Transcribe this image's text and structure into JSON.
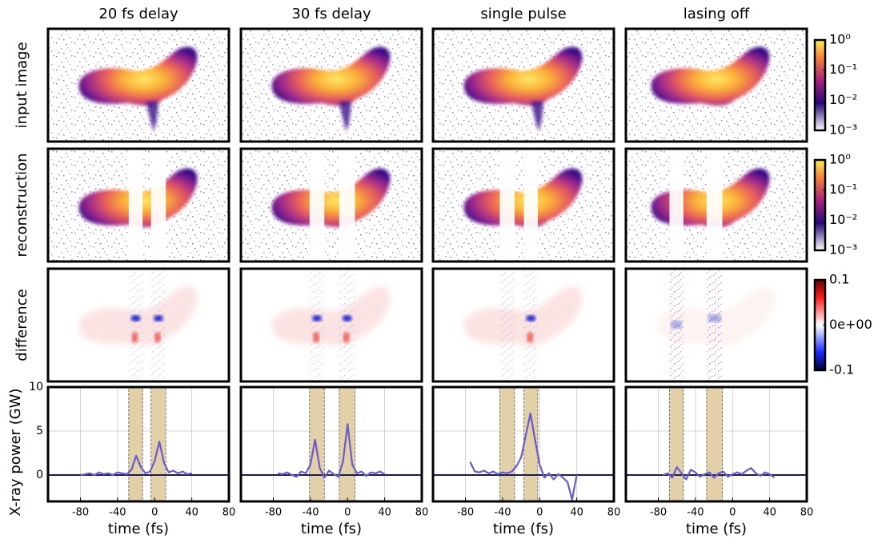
{
  "columns": [
    "20 fs delay",
    "30 fs delay",
    "single pulse",
    "lasing off"
  ],
  "image_rows": [
    "input image",
    "reconstruction",
    "difference"
  ],
  "colorbars": [
    {
      "scale": "log",
      "lim": [
        -3,
        0
      ],
      "ticks": [
        {
          "value": 0,
          "label": "10⁰"
        },
        {
          "value": -1,
          "label": "10⁻¹"
        },
        {
          "value": -2,
          "label": "10⁻²"
        },
        {
          "value": -3,
          "label": "10⁻³"
        }
      ]
    },
    {
      "scale": "log",
      "lim": [
        -3,
        0
      ],
      "ticks": [
        {
          "value": 0,
          "label": "10⁰"
        },
        {
          "value": -1,
          "label": "10⁻¹"
        },
        {
          "value": -2,
          "label": "10⁻²"
        },
        {
          "value": -3,
          "label": "10⁻³"
        }
      ]
    },
    {
      "scale": "diverging",
      "lim": [
        -0.1,
        0.1
      ],
      "ticks": [
        0.1,
        {
          "value": 0,
          "label": "0e+00"
        },
        -0.1
      ]
    }
  ],
  "chart_data": [
    {
      "type": "line",
      "xlabel": "time (fs)",
      "ylabel": "X-ray power (GW)",
      "show_ytick_labels": true,
      "xlim": [
        -115,
        80
      ],
      "ylim": [
        -3,
        10
      ],
      "xticks": [
        -80,
        -40,
        0,
        40,
        80
      ],
      "yticks": [
        0,
        5,
        10
      ],
      "grid": true,
      "spans": [
        [
          -28,
          -13
        ],
        [
          -4,
          12
        ]
      ],
      "series": [
        {
          "color": "#6a5cc8",
          "x": [
            -80,
            -75,
            -70,
            -65,
            -60,
            -55,
            -50,
            -45,
            -40,
            -35,
            -30,
            -25,
            -20,
            -15,
            -10,
            -5,
            0,
            5,
            10,
            15,
            20,
            25,
            30,
            35,
            40
          ],
          "values": [
            0,
            0.1,
            0.2,
            0,
            0.3,
            0.1,
            0.2,
            0,
            0.3,
            0.2,
            0.1,
            0.6,
            2.2,
            0.9,
            0.2,
            0.4,
            1.6,
            3.8,
            1.4,
            0.3,
            0.5,
            0.2,
            0.4,
            0.1,
            0.2
          ]
        }
      ]
    },
    {
      "type": "line",
      "xlabel": "time (fs)",
      "show_ytick_labels": false,
      "xlim": [
        -115,
        80
      ],
      "ylim": [
        -3,
        10
      ],
      "xticks": [
        -80,
        -40,
        0,
        40,
        80
      ],
      "yticks": [
        0,
        5,
        10
      ],
      "grid": true,
      "spans": [
        [
          -41,
          -25
        ],
        [
          -9,
          8
        ]
      ],
      "series": [
        {
          "color": "#6a5cc8",
          "x": [
            -75,
            -70,
            -65,
            -60,
            -55,
            -50,
            -45,
            -40,
            -35,
            -30,
            -25,
            -20,
            -15,
            -10,
            -5,
            0,
            5,
            10,
            15,
            20,
            25,
            30,
            35,
            40
          ],
          "values": [
            0.2,
            0.1,
            0.3,
            0,
            -0.2,
            0.4,
            0.2,
            1.2,
            4.0,
            0.8,
            -0.3,
            0.5,
            0.1,
            -0.2,
            1.5,
            5.8,
            1.2,
            0.2,
            0.4,
            -0.1,
            0.3,
            0.2,
            0.4,
            0.1
          ]
        }
      ]
    },
    {
      "type": "line",
      "xlabel": "time (fs)",
      "show_ytick_labels": false,
      "xlim": [
        -115,
        80
      ],
      "ylim": [
        -3,
        10
      ],
      "xticks": [
        -80,
        -40,
        0,
        40,
        80
      ],
      "yticks": [
        0,
        5,
        10
      ],
      "grid": true,
      "spans": [
        [
          -43,
          -27
        ],
        [
          -17,
          -2
        ]
      ],
      "series": [
        {
          "color": "#6a5cc8",
          "x": [
            -75,
            -70,
            -65,
            -60,
            -55,
            -50,
            -45,
            -40,
            -35,
            -30,
            -25,
            -20,
            -15,
            -10,
            -5,
            0,
            5,
            10,
            15,
            20,
            25,
            30,
            35,
            40
          ],
          "values": [
            1.5,
            0.4,
            0.3,
            0.5,
            0.2,
            0.4,
            0.1,
            0.3,
            0.2,
            0.4,
            1.0,
            2.0,
            4.5,
            7.0,
            4.0,
            1.2,
            -0.3,
            0.2,
            -0.5,
            0.1,
            -0.3,
            -0.8,
            -2.8,
            0
          ]
        }
      ]
    },
    {
      "type": "line",
      "xlabel": "time (fs)",
      "show_ytick_labels": false,
      "xlim": [
        -115,
        80
      ],
      "ylim": [
        -3,
        10
      ],
      "xticks": [
        -80,
        -40,
        0,
        40,
        80
      ],
      "yticks": [
        0,
        5,
        10
      ],
      "grid": true,
      "spans": [
        [
          -68,
          -53
        ],
        [
          -28,
          -11
        ]
      ],
      "series": [
        {
          "color": "#6a5cc8",
          "x": [
            -75,
            -70,
            -65,
            -60,
            -55,
            -50,
            -45,
            -40,
            -35,
            -30,
            -25,
            -20,
            -15,
            -10,
            -5,
            0,
            5,
            10,
            15,
            20,
            25,
            30,
            35,
            40,
            45
          ],
          "values": [
            0,
            0.2,
            -0.3,
            0.9,
            0.2,
            -0.5,
            0.6,
            0.3,
            -0.2,
            0.1,
            0.3,
            -0.3,
            0.2,
            0.4,
            -0.2,
            0.1,
            0.3,
            0.1,
            0.5,
            0.8,
            0.2,
            -0.1,
            0.3,
            0.1,
            -0.3
          ]
        }
      ]
    }
  ]
}
